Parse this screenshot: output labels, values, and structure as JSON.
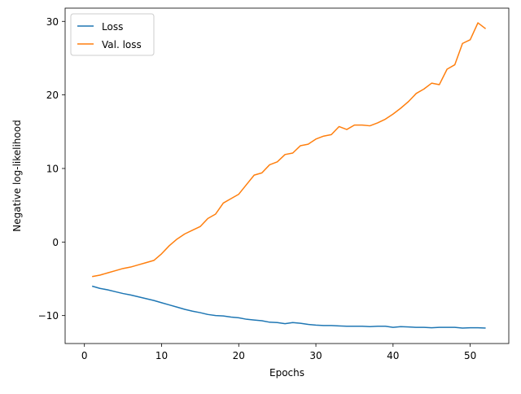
{
  "chart_data": {
    "type": "line",
    "title": "",
    "xlabel": "Epochs",
    "ylabel": "Negative log-likelihood",
    "xlim": [
      -2.5,
      55
    ],
    "ylim": [
      -13.8,
      31.8
    ],
    "xticks": [
      0,
      10,
      20,
      30,
      40,
      50
    ],
    "yticks": [
      -10,
      0,
      10,
      20,
      30
    ],
    "grid": false,
    "legend_position": "top-left",
    "series": [
      {
        "name": "Loss",
        "color": "#1f77b4",
        "x": [
          1,
          2,
          3,
          4,
          5,
          6,
          7,
          8,
          9,
          10,
          11,
          12,
          13,
          14,
          15,
          16,
          17,
          18,
          19,
          20,
          21,
          22,
          23,
          24,
          25,
          26,
          27,
          28,
          29,
          30,
          31,
          32,
          33,
          34,
          35,
          36,
          37,
          38,
          39,
          40,
          41,
          42,
          43,
          44,
          45,
          46,
          47,
          48,
          49,
          50,
          51,
          52
        ],
        "values": [
          -6.0,
          -6.3,
          -6.5,
          -6.75,
          -7.0,
          -7.2,
          -7.45,
          -7.7,
          -7.95,
          -8.25,
          -8.55,
          -8.85,
          -9.15,
          -9.4,
          -9.6,
          -9.85,
          -10.0,
          -10.05,
          -10.2,
          -10.3,
          -10.5,
          -10.6,
          -10.7,
          -10.9,
          -10.95,
          -11.1,
          -10.95,
          -11.05,
          -11.2,
          -11.3,
          -11.35,
          -11.35,
          -11.4,
          -11.45,
          -11.45,
          -11.45,
          -11.5,
          -11.45,
          -11.45,
          -11.6,
          -11.5,
          -11.55,
          -11.6,
          -11.6,
          -11.65,
          -11.6,
          -11.6,
          -11.6,
          -11.7,
          -11.65,
          -11.65,
          -11.7
        ]
      },
      {
        "name": "Val. loss",
        "color": "#ff7f0e",
        "x": [
          1,
          2,
          3,
          4,
          5,
          6,
          7,
          8,
          9,
          10,
          11,
          12,
          13,
          14,
          15,
          16,
          17,
          18,
          19,
          20,
          21,
          22,
          23,
          24,
          25,
          26,
          27,
          28,
          29,
          30,
          31,
          32,
          33,
          34,
          35,
          36,
          37,
          38,
          39,
          40,
          41,
          42,
          43,
          44,
          45,
          46,
          47,
          48,
          49,
          50,
          51,
          52
        ],
        "values": [
          -4.7,
          -4.5,
          -4.2,
          -3.9,
          -3.6,
          -3.4,
          -3.1,
          -2.8,
          -2.5,
          -1.6,
          -0.5,
          0.4,
          1.1,
          1.6,
          2.1,
          3.2,
          3.8,
          5.3,
          5.9,
          6.5,
          7.8,
          9.1,
          9.4,
          10.5,
          10.9,
          11.9,
          12.1,
          13.1,
          13.3,
          14.0,
          14.4,
          14.6,
          15.7,
          15.3,
          15.9,
          15.9,
          15.8,
          16.2,
          16.7,
          17.4,
          18.2,
          19.1,
          20.2,
          20.8,
          21.6,
          21.4,
          23.5,
          24.1,
          27.0,
          27.5,
          29.8,
          29.0
        ]
      }
    ]
  }
}
